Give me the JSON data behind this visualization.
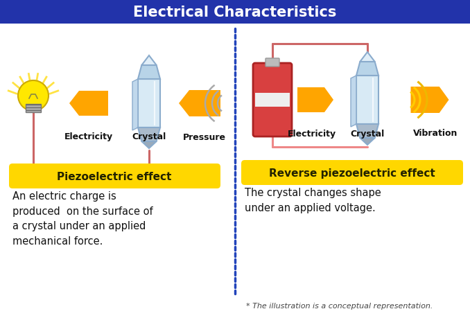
{
  "title": "Electrical Characteristics",
  "title_bg_color": "#2233AA",
  "title_text_color": "#FFFFFF",
  "bg_color": "#FFFFFF",
  "divider_color": "#2244BB",
  "left_label": "Piezoelectric effect",
  "right_label": "Reverse piezoelectric effect",
  "label_bg": "#FFD700",
  "left_desc": "An electric charge is\nproduced  on the surface of\na crystal under an applied\nmechanical force.",
  "right_desc": "The crystal changes shape\nunder an applied voltage.",
  "footnote": "* The illustration is a conceptual representation.",
  "arrow_color": "#FFA500",
  "arrow_color2": "#FFCC00",
  "left_labels": [
    "Electricity",
    "Crystal",
    "Pressure"
  ],
  "right_labels": [
    "Electricity",
    "Crystal",
    "Vibration"
  ],
  "wire_color": "#EE8888",
  "wire_color2": "#CC6666",
  "crystal_face_color": "#B8D4E8",
  "crystal_body_color": "#D8EAF5",
  "crystal_edge_color": "#8AABCC",
  "battery_color": "#D84040",
  "battery_edge": "#AA2222",
  "battery_band": "#EEEEEE",
  "battery_terminal": "#BBBBBB",
  "bulb_color": "#FFE800",
  "bulb_edge": "#CCAA00",
  "vib_color": "#FFCC00",
  "vib_color2": "#DDAA00"
}
